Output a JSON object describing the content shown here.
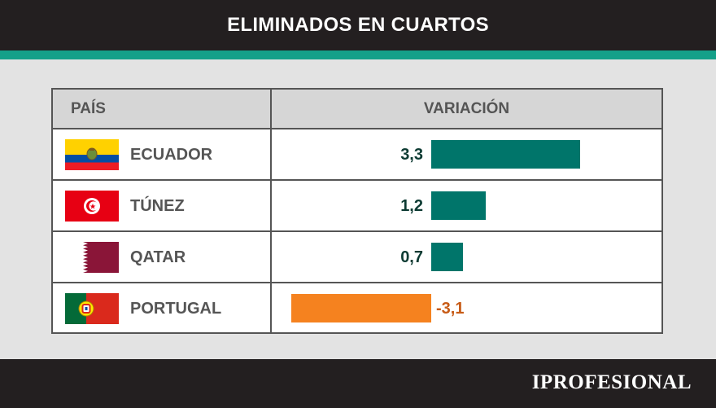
{
  "title": "ELIMINADOS EN CUARTOS",
  "brand": "IPROFESIONAL",
  "colors": {
    "positive": "#00756a",
    "negative": "#f5821f",
    "positive_text": "#0d3b33",
    "negative_text": "#c75a15"
  },
  "table": {
    "headers": {
      "country": "PAÍS",
      "variation": "VARIACIÓN"
    }
  },
  "chart_data": {
    "type": "bar",
    "title": "ELIMINADOS EN CUARTOS",
    "categories": [
      "ECUADOR",
      "TÚNEZ",
      "QATAR",
      "PORTUGAL"
    ],
    "values": [
      3.3,
      1.2,
      0.7,
      -3.1
    ],
    "value_labels": [
      "3,3",
      "1,2",
      "0,7",
      "-3,1"
    ],
    "flags": [
      "ecuador-flag-icon",
      "tunisia-flag-icon",
      "qatar-flag-icon",
      "portugal-flag-icon"
    ],
    "xlabel": "",
    "ylabel": "VARIACIÓN"
  }
}
